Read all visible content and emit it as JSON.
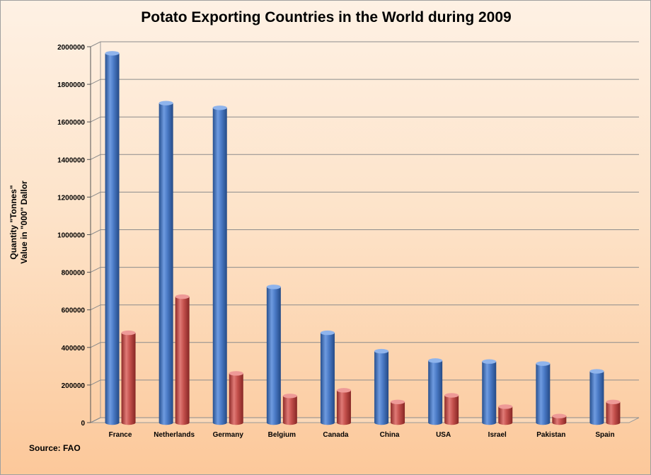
{
  "chart_data": {
    "type": "bar",
    "title": "Potato Exporting Countries in the World during 2009",
    "ylabel": [
      "Quantity \"Tonnes\"",
      "Value in \"000\" Dallor"
    ],
    "xlabel": "",
    "categories": [
      "France",
      "Netherlands",
      "Germany",
      "Belgium",
      "Canada",
      "China",
      "USA",
      "Israel",
      "Pakistan",
      "Spain"
    ],
    "series": [
      {
        "values": [
          1965000,
          1700000,
          1675000,
          722000,
          478000,
          380000,
          330000,
          325000,
          314000,
          273000
        ],
        "color": "#3d6fb8"
      },
      {
        "values": [
          478000,
          670000,
          262000,
          142000,
          172000,
          110000,
          145000,
          85000,
          35000,
          110000
        ],
        "color": "#c0413e"
      }
    ],
    "ylim": [
      0,
      2000000
    ],
    "yticks": [
      "0",
      "200000",
      "400000",
      "600000",
      "800000",
      "1000000",
      "1200000",
      "1400000",
      "1600000",
      "1800000",
      "2000000"
    ],
    "grid": true,
    "legend": "none",
    "source": "Source: FAO"
  }
}
